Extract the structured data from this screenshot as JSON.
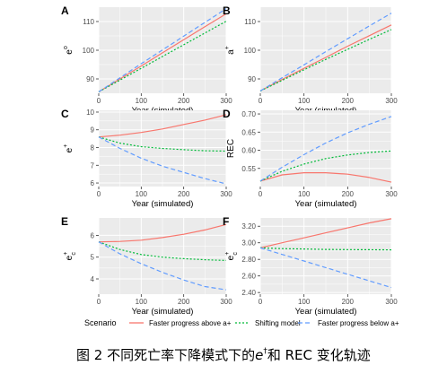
{
  "chart_data": [
    {
      "type": "line",
      "panel": "A",
      "xlabel": "Year (simulated)",
      "ylabel": "e°",
      "xlim": [
        0,
        300
      ],
      "ylim": [
        85,
        115
      ],
      "xticks": [
        0,
        100,
        200,
        300
      ],
      "yticks": [
        90,
        100,
        110
      ],
      "x": [
        0,
        50,
        100,
        150,
        200,
        250,
        300
      ],
      "series": [
        {
          "name": "Faster progress above a+",
          "style": "solid",
          "color": "#F8766D",
          "values": [
            85.5,
            90.0,
            94.5,
            99.1,
            103.7,
            108.2,
            112.7
          ]
        },
        {
          "name": "Shifting model",
          "style": "dotted",
          "color": "#00BA38",
          "values": [
            85.5,
            89.6,
            93.7,
            97.8,
            101.9,
            106.0,
            110.1
          ]
        },
        {
          "name": "Faster progress below a+",
          "style": "dashed",
          "color": "#619CFF",
          "values": [
            85.5,
            90.4,
            95.3,
            100.1,
            104.9,
            109.7,
            114.5
          ]
        }
      ]
    },
    {
      "type": "line",
      "panel": "B",
      "xlabel": "Year (simulated)",
      "ylabel": "a+",
      "xlim": [
        0,
        300
      ],
      "ylim": [
        85,
        115
      ],
      "xticks": [
        0,
        100,
        200,
        300
      ],
      "yticks": [
        90,
        100,
        110
      ],
      "x": [
        0,
        50,
        100,
        150,
        200,
        250,
        300
      ],
      "series": [
        {
          "name": "Faster progress above a+",
          "style": "solid",
          "color": "#F8766D",
          "values": [
            85.8,
            89.8,
            93.7,
            97.5,
            101.4,
            105.1,
            108.8
          ]
        },
        {
          "name": "Shifting model",
          "style": "dotted",
          "color": "#00BA38",
          "values": [
            85.8,
            89.5,
            93.2,
            96.8,
            100.3,
            103.8,
            107.2
          ]
        },
        {
          "name": "Faster progress below a+",
          "style": "dashed",
          "color": "#619CFF",
          "values": [
            85.8,
            90.4,
            94.9,
            99.5,
            104.0,
            108.5,
            112.9
          ]
        }
      ]
    },
    {
      "type": "line",
      "panel": "C",
      "xlabel": "Year (simulated)",
      "ylabel": "e+",
      "xlim": [
        0,
        300
      ],
      "ylim": [
        5.8,
        10.1
      ],
      "xticks": [
        0,
        100,
        200,
        300
      ],
      "yticks": [
        6,
        7,
        8,
        9,
        10
      ],
      "x": [
        0,
        50,
        100,
        150,
        200,
        250,
        300
      ],
      "series": [
        {
          "name": "Faster progress above a+",
          "style": "solid",
          "color": "#F8766D",
          "values": [
            8.6,
            8.7,
            8.85,
            9.05,
            9.3,
            9.55,
            9.85
          ]
        },
        {
          "name": "Shifting model",
          "style": "dotted",
          "color": "#00BA38",
          "values": [
            8.6,
            8.25,
            8.05,
            7.95,
            7.88,
            7.82,
            7.8
          ]
        },
        {
          "name": "Faster progress below a+",
          "style": "dashed",
          "color": "#619CFF",
          "values": [
            8.6,
            7.95,
            7.4,
            6.95,
            6.6,
            6.25,
            5.95
          ]
        }
      ]
    },
    {
      "type": "line",
      "panel": "D",
      "xlabel": "Year (simulated)",
      "ylabel": "REC",
      "xlim": [
        0,
        300
      ],
      "ylim": [
        0.5,
        0.71
      ],
      "xticks": [
        0,
        100,
        200,
        300
      ],
      "yticks": [
        0.55,
        0.6,
        0.65,
        0.7
      ],
      "x": [
        0,
        50,
        100,
        150,
        200,
        250,
        300
      ],
      "series": [
        {
          "name": "Faster progress above a+",
          "style": "solid",
          "color": "#F8766D",
          "values": [
            0.515,
            0.532,
            0.538,
            0.538,
            0.534,
            0.525,
            0.512
          ]
        },
        {
          "name": "Shifting model",
          "style": "dotted",
          "color": "#00BA38",
          "values": [
            0.515,
            0.542,
            0.562,
            0.577,
            0.587,
            0.594,
            0.598
          ]
        },
        {
          "name": "Faster progress below a+",
          "style": "dashed",
          "color": "#619CFF",
          "values": [
            0.515,
            0.553,
            0.588,
            0.62,
            0.648,
            0.672,
            0.693
          ]
        }
      ]
    },
    {
      "type": "line",
      "panel": "E",
      "xlabel": "Year (simulated)",
      "ylabel": "e+c",
      "xlim": [
        0,
        300
      ],
      "ylim": [
        3.3,
        6.8
      ],
      "xticks": [
        0,
        100,
        200,
        300
      ],
      "yticks": [
        4,
        5,
        6
      ],
      "x": [
        0,
        50,
        100,
        150,
        200,
        250,
        300
      ],
      "series": [
        {
          "name": "Faster progress above a+",
          "style": "solid",
          "color": "#F8766D",
          "values": [
            5.7,
            5.72,
            5.78,
            5.9,
            6.05,
            6.25,
            6.5
          ]
        },
        {
          "name": "Shifting model",
          "style": "dotted",
          "color": "#00BA38",
          "values": [
            5.7,
            5.35,
            5.12,
            5.0,
            4.93,
            4.88,
            4.85
          ]
        },
        {
          "name": "Faster progress below a+",
          "style": "dashed",
          "color": "#619CFF",
          "values": [
            5.7,
            5.15,
            4.7,
            4.3,
            3.95,
            3.65,
            3.5
          ]
        }
      ]
    },
    {
      "type": "line",
      "panel": "F",
      "xlabel": "Year (simulated)",
      "ylabel": "e+c",
      "xlim": [
        0,
        300
      ],
      "ylim": [
        2.38,
        3.3
      ],
      "xticks": [
        0,
        100,
        200,
        300
      ],
      "yticks": [
        2.4,
        2.6,
        2.8,
        3.0,
        3.2
      ],
      "x": [
        0,
        50,
        100,
        150,
        200,
        250,
        300
      ],
      "series": [
        {
          "name": "Faster progress above a+",
          "style": "solid",
          "color": "#F8766D",
          "values": [
            2.94,
            3.0,
            3.06,
            3.12,
            3.18,
            3.24,
            3.29
          ]
        },
        {
          "name": "Shifting model",
          "style": "dotted",
          "color": "#00BA38",
          "values": [
            2.94,
            2.93,
            2.925,
            2.92,
            2.918,
            2.917,
            2.915
          ]
        },
        {
          "name": "Faster progress below a+",
          "style": "dashed",
          "color": "#619CFF",
          "values": [
            2.94,
            2.86,
            2.78,
            2.7,
            2.62,
            2.54,
            2.46
          ]
        }
      ]
    }
  ],
  "legend": {
    "title": "Scenario",
    "items": [
      {
        "label": "Faster progress above a+",
        "style": "solid",
        "color": "#F8766D"
      },
      {
        "label": "Shifting model",
        "style": "dotted",
        "color": "#00BA38"
      },
      {
        "label": "Faster progress below a+",
        "style": "dashed",
        "color": "#619CFF"
      }
    ]
  },
  "caption": {
    "prefix": "图 2 不同死亡率下降模式下的",
    "symbol": "e",
    "symbol_sup": "†",
    "suffix": "和 REC 变化轨迹"
  },
  "colors": {
    "panel_bg": "#EBEBEB",
    "grid": "#FFFFFF",
    "axis_text": "#4D4D4D"
  }
}
